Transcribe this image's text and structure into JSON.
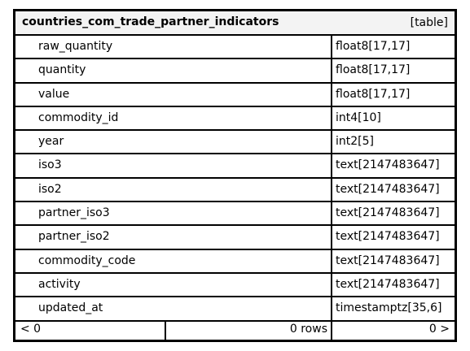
{
  "table": {
    "name": "countries_com_trade_partner_indicators",
    "kind": "[table]",
    "columns": [
      {
        "name": "raw_quantity",
        "type": "float8[17,17]"
      },
      {
        "name": "quantity",
        "type": "float8[17,17]"
      },
      {
        "name": "value",
        "type": "float8[17,17]"
      },
      {
        "name": "commodity_id",
        "type": "int4[10]"
      },
      {
        "name": "year",
        "type": "int2[5]"
      },
      {
        "name": "iso3",
        "type": "text[2147483647]"
      },
      {
        "name": "iso2",
        "type": "text[2147483647]"
      },
      {
        "name": "partner_iso3",
        "type": "text[2147483647]"
      },
      {
        "name": "partner_iso2",
        "type": "text[2147483647]"
      },
      {
        "name": "commodity_code",
        "type": "text[2147483647]"
      },
      {
        "name": "activity",
        "type": "text[2147483647]"
      },
      {
        "name": "updated_at",
        "type": "timestamptz[35,6]"
      }
    ]
  },
  "footer": {
    "prev": "< 0",
    "rows": "0 rows",
    "next": "0 >"
  }
}
